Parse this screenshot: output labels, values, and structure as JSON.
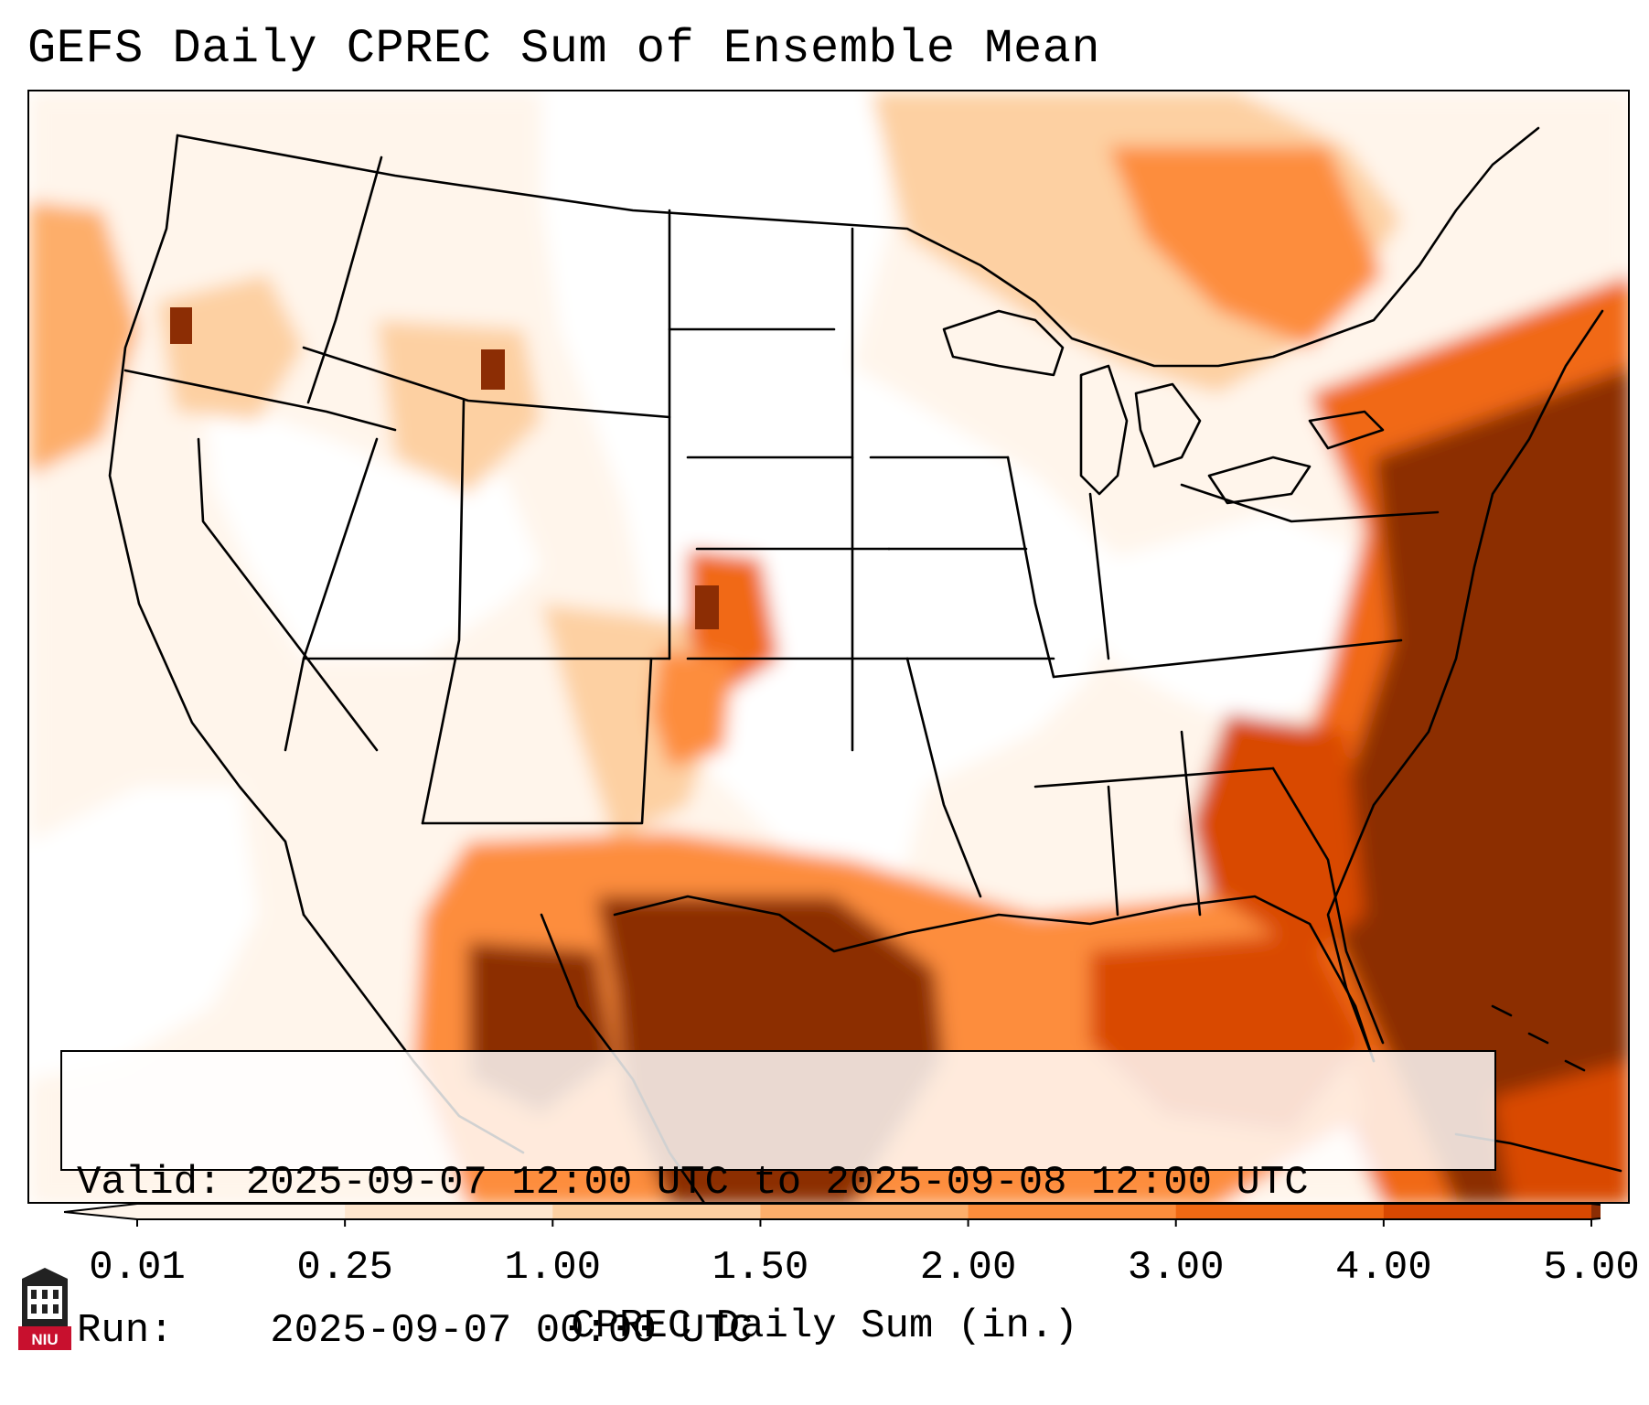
{
  "title": "GEFS Daily CPREC Sum of Ensemble Mean",
  "info": {
    "valid_label": "Valid:",
    "valid_value": "2025-09-07 12:00 UTC to 2025-09-08 12:00 UTC",
    "run_label": "Run:",
    "run_value": "2025-09-07 00:00 UTC"
  },
  "colorbar": {
    "ticks": [
      "0.01",
      "0.25",
      "1.00",
      "1.50",
      "2.00",
      "3.00",
      "4.00",
      "5.00"
    ],
    "label": "CPREC Daily Sum (in.)",
    "colors": [
      "#fff5eb",
      "#fee6ce",
      "#fdd0a2",
      "#fdae6b",
      "#fd8d3c",
      "#f16913",
      "#d94801",
      "#8c2d04"
    ],
    "extend": "both"
  },
  "logo": {
    "text": "NIU",
    "icon": "niu-tower-logo-icon"
  }
}
